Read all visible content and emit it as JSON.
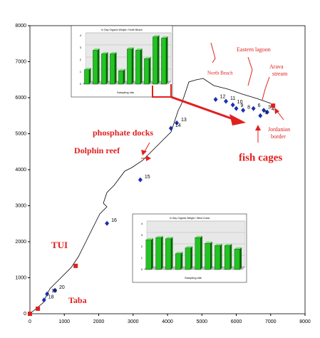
{
  "chart_data": [
    {
      "type": "scatter",
      "xlim": [
        0,
        8000
      ],
      "ylim": [
        0,
        8000
      ],
      "xticks": [
        0,
        1000,
        2000,
        3000,
        4000,
        5000,
        6000,
        7000,
        8000
      ],
      "yticks": [
        0,
        1000,
        2000,
        3000,
        4000,
        5000,
        6000,
        7000,
        8000
      ],
      "coastline": {
        "color": "#000000",
        "x": [
          0,
          373,
          580,
          788,
          1202,
          1409,
          1617,
          1824,
          2031,
          2238,
          2135,
          2238,
          2446,
          2756,
          2964,
          3275,
          3482,
          3689,
          3896,
          4104,
          4207,
          4311,
          4415,
          4518,
          4622,
          4829,
          5036,
          5347,
          5762,
          6176,
          6591,
          7005
        ],
        "y": [
          0,
          297,
          693,
          891,
          1287,
          1584,
          1980,
          2376,
          2772,
          2970,
          3069,
          3366,
          3564,
          3960,
          4059,
          4257,
          4455,
          4653,
          4851,
          5050,
          5347,
          5644,
          5842,
          6139,
          6436,
          6495,
          6535,
          6337,
          6238,
          6099,
          5980,
          5842
        ]
      },
      "series": [
        {
          "marker": "diamond",
          "color": "#1a2fb0",
          "labels": [
            "12",
            "11",
            "10",
            "9",
            "8",
            "6",
            "3",
            "4",
            "5",
            "13",
            "14",
            "15",
            "16",
            "20",
            "19",
            "18"
          ],
          "x": [
            5400,
            5700,
            5900,
            6000,
            6200,
            6500,
            6800,
            6900,
            6700,
            4270,
            4100,
            3210,
            2240,
            725,
            500,
            410
          ],
          "values": [
            5950,
            5900,
            5800,
            5700,
            5650,
            5700,
            5650,
            5600,
            5500,
            5300,
            5150,
            3720,
            2510,
            650,
            550,
            380
          ]
        },
        {
          "marker": "square",
          "color": "#e02020",
          "x": [
            0,
            230,
            1330,
            7070
          ],
          "values": [
            0,
            140,
            1330,
            5780
          ]
        }
      ],
      "annotations": [
        "phosphate docks",
        "Dolphin reef",
        "fish cages",
        "TUI",
        "Taba",
        "North Beach",
        "Eastern lagoon",
        "Arava stream",
        "Jordanian border"
      ]
    },
    {
      "type": "bar",
      "title": "In Day Organic Weight / North Beach",
      "x_label": "Sampling site",
      "categories": [
        null,
        null,
        null,
        null,
        null,
        null,
        null,
        null,
        null,
        null
      ],
      "values": [
        1.2,
        2.8,
        2.5,
        2.5,
        1.1,
        2.9,
        2.8,
        2.1,
        3.9,
        3.8
      ],
      "color": "#22c322",
      "ylim": [
        0,
        4
      ],
      "yticks": [
        0,
        1,
        2,
        3,
        4
      ]
    },
    {
      "type": "bar",
      "title": "In Day Organic Weight / West Coast",
      "x_label": "Sampling site",
      "categories": [
        null,
        null,
        null,
        null,
        null,
        null,
        null,
        null,
        null,
        null
      ],
      "values": [
        2.6,
        2.8,
        2.7,
        1.4,
        1.9,
        2.8,
        2.3,
        2.1,
        2.1,
        1.8
      ],
      "color": "#22c322",
      "ylim": [
        0,
        4
      ],
      "yticks": [
        0,
        1,
        2,
        3,
        4
      ]
    }
  ]
}
